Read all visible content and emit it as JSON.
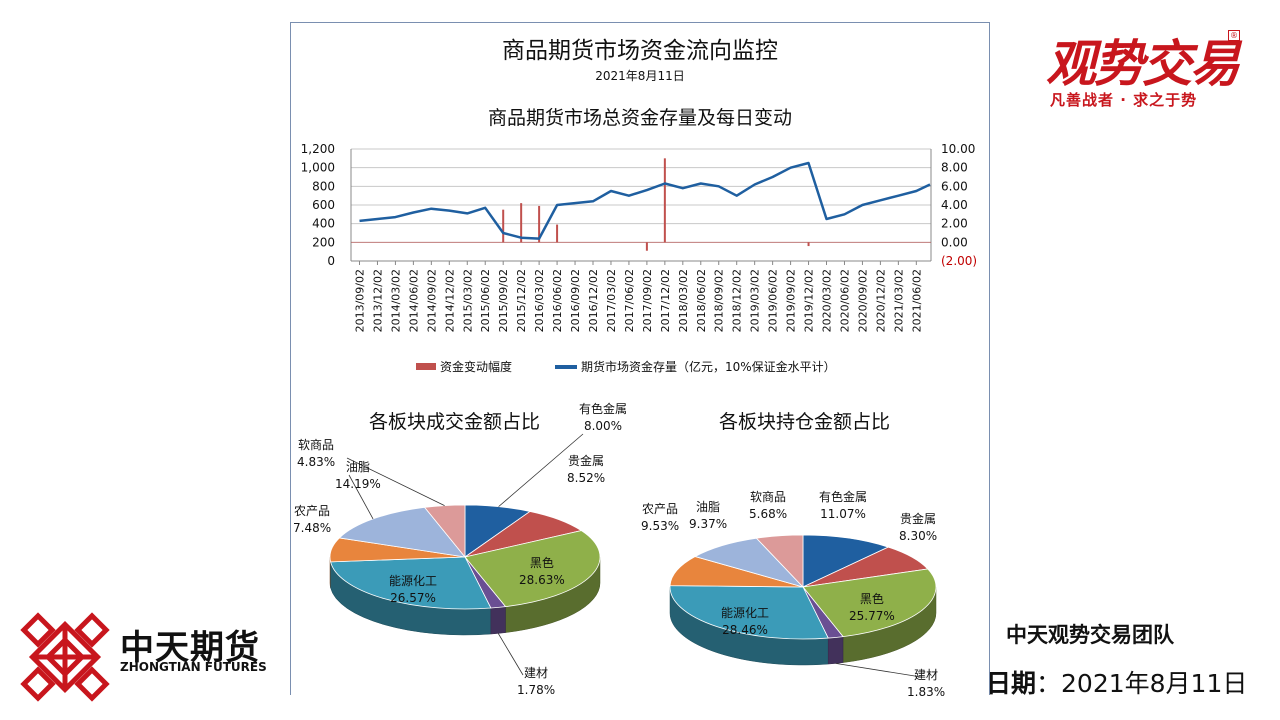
{
  "header": {
    "title": "商品期货市场资金流向监控",
    "date": "2021年8月11日"
  },
  "brand": {
    "top_logo": "观势交易",
    "top_slogan": "凡善战者 · 求之于势",
    "bottom_logo_cn": "中天期货",
    "bottom_logo_en": "ZHONGTIAN FUTURES",
    "team": "中天观势交易团队",
    "date_label": "日期",
    "date_sep": "：",
    "date_value": "2021年8月11日",
    "red": "#c8161d"
  },
  "chart_data": [
    {
      "type": "line",
      "title": "商品期货市场总资金存量及每日变动",
      "x_tick_labels": [
        "2013/09/02",
        "2013/12/02",
        "2014/03/02",
        "2014/06/02",
        "2014/09/02",
        "2014/12/02",
        "2015/03/02",
        "2015/06/02",
        "2015/09/02",
        "2015/12/02",
        "2016/03/02",
        "2016/06/02",
        "2016/09/02",
        "2016/12/02",
        "2017/03/02",
        "2017/06/02",
        "2017/09/02",
        "2017/12/02",
        "2018/03/02",
        "2018/06/02",
        "2018/09/02",
        "2018/12/02",
        "2019/03/02",
        "2019/06/02",
        "2019/09/02",
        "2019/12/02",
        "2020/03/02",
        "2020/06/02",
        "2020/09/02",
        "2020/12/02",
        "2021/03/02",
        "2021/06/02"
      ],
      "y_left": {
        "range": [
          0,
          1200
        ],
        "ticks": [
          "0",
          "200",
          "400",
          "600",
          "800",
          "1,000",
          "1,200"
        ]
      },
      "y_right": {
        "range": [
          -2,
          10
        ],
        "ticks": [
          "(2.00)",
          "0.00",
          "2.00",
          "4.00",
          "6.00",
          "8.00",
          "10.00"
        ],
        "negative_color": "#c00000"
      },
      "grid": true,
      "legend_position": "bottom",
      "series": [
        {
          "name": "期货市场资金存量（亿元，10%保证金水平计）",
          "kind": "line",
          "axis": "left",
          "color": "#1f5fa0",
          "x": [
            "2013/09/02",
            "2013/12/02",
            "2014/03/02",
            "2014/06/02",
            "2014/09/02",
            "2014/12/02",
            "2015/03/02",
            "2015/06/02",
            "2015/09/02",
            "2015/12/02",
            "2016/03/02",
            "2016/06/02",
            "2016/09/02",
            "2016/12/02",
            "2017/03/02",
            "2017/06/02",
            "2017/09/02",
            "2017/12/02",
            "2018/03/02",
            "2018/06/02",
            "2018/09/02",
            "2018/12/02",
            "2019/03/02",
            "2019/06/02",
            "2019/09/02",
            "2019/12/02",
            "2020/03/02",
            "2020/06/02",
            "2020/09/02",
            "2020/12/02",
            "2021/03/02",
            "2021/06/02",
            "2021/08/11"
          ],
          "values": [
            430,
            450,
            470,
            520,
            560,
            540,
            510,
            570,
            300,
            250,
            240,
            600,
            620,
            640,
            750,
            700,
            760,
            830,
            780,
            830,
            800,
            700,
            820,
            900,
            1000,
            1050,
            450,
            500,
            600,
            650,
            700,
            750,
            820
          ]
        },
        {
          "name": "资金变动幅度",
          "kind": "bar",
          "axis": "right",
          "color": "#c0504d",
          "x": [
            "2015/09/02",
            "2015/12/02",
            "2016/03/02",
            "2016/06/02",
            "2017/12/02",
            "2017/09/02",
            "2019/12/02"
          ],
          "values": [
            3.5,
            4.2,
            3.9,
            1.9,
            9.0,
            -0.9,
            -0.4
          ]
        }
      ]
    },
    {
      "type": "pie",
      "title": "各板块成交金额占比",
      "slices": [
        {
          "label": "有色金属",
          "value": "8.00%",
          "num": 8.0,
          "color": "#1f5fa0"
        },
        {
          "label": "贵金属",
          "value": "8.52%",
          "num": 8.52,
          "color": "#c0504d"
        },
        {
          "label": "黑色",
          "value": "28.63%",
          "num": 28.63,
          "color": "#8fb04a"
        },
        {
          "label": "建材",
          "value": "1.78%",
          "num": 1.78,
          "color": "#6a4f93"
        },
        {
          "label": "能源化工",
          "value": "26.57%",
          "num": 26.57,
          "color": "#3b9bb8"
        },
        {
          "label": "农产品",
          "value": "7.48%",
          "num": 7.48,
          "color": "#e8853d"
        },
        {
          "label": "油脂",
          "value": "14.19%",
          "num": 14.19,
          "color": "#9db4db"
        },
        {
          "label": "软商品",
          "value": "4.83%",
          "num": 4.83,
          "color": "#dc9a99"
        }
      ]
    },
    {
      "type": "pie",
      "title": "各板块持仓金额占比",
      "slices": [
        {
          "label": "有色金属",
          "value": "11.07%",
          "num": 11.07,
          "color": "#1f5fa0"
        },
        {
          "label": "贵金属",
          "value": "8.30%",
          "num": 8.3,
          "color": "#c0504d"
        },
        {
          "label": "黑色",
          "value": "25.77%",
          "num": 25.77,
          "color": "#8fb04a"
        },
        {
          "label": "建材",
          "value": "1.83%",
          "num": 1.83,
          "color": "#6a4f93"
        },
        {
          "label": "能源化工",
          "value": "28.46%",
          "num": 28.46,
          "color": "#3b9bb8"
        },
        {
          "label": "农产品",
          "value": "9.53%",
          "num": 9.53,
          "color": "#e8853d"
        },
        {
          "label": "油脂",
          "value": "9.37%",
          "num": 9.37,
          "color": "#9db4db"
        },
        {
          "label": "软商品",
          "value": "5.68%",
          "num": 5.68,
          "color": "#dc9a99"
        }
      ]
    }
  ]
}
